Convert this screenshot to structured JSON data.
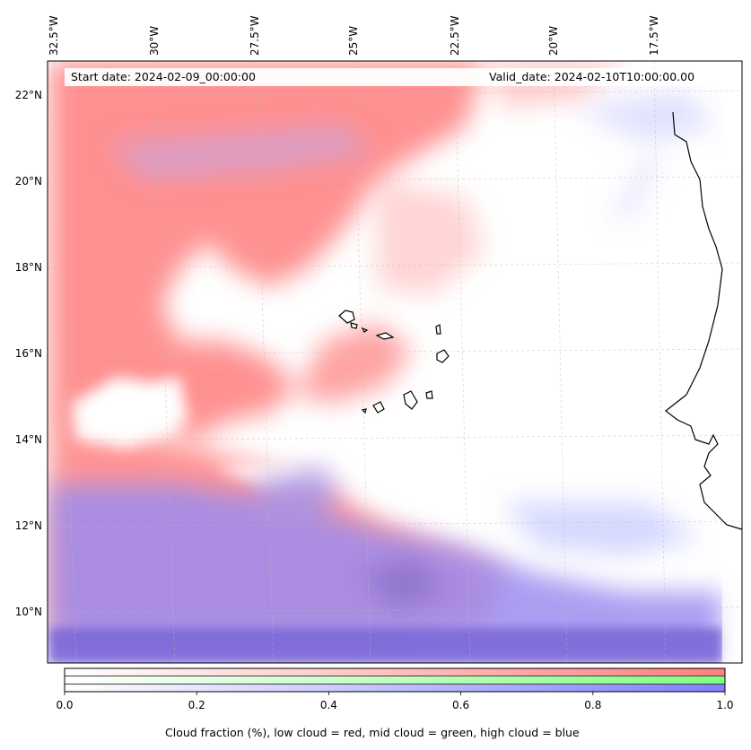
{
  "header": {
    "start_date": "Start date: 2024-02-09_00:00:00",
    "valid_date": "Valid_date: 2024-02-10T10:00:00.00"
  },
  "longitude_labels": [
    "32.5°W",
    "30°W",
    "27.5°W",
    "25°W",
    "22.5°W",
    "20°W",
    "17.5°W"
  ],
  "latitude_labels": [
    "22°N",
    "20°N",
    "18°N",
    "16°N",
    "14°N",
    "12°N",
    "10°N"
  ],
  "colorbar": {
    "ticks": [
      "0.0",
      "0.2",
      "0.4",
      "0.6",
      "0.8",
      "1.0"
    ],
    "label": "Cloud fraction (%), low cloud = red, mid cloud = green, high cloud = blue",
    "colors": {
      "low": "#ff7f7f",
      "mid": "#7fff7f",
      "high": "#7f7fff"
    }
  },
  "map": {
    "lon_range": [
      -32.5,
      -15.5
    ],
    "lat_range": [
      9,
      23
    ],
    "gridlines": true,
    "coastline_color": "#000000"
  }
}
